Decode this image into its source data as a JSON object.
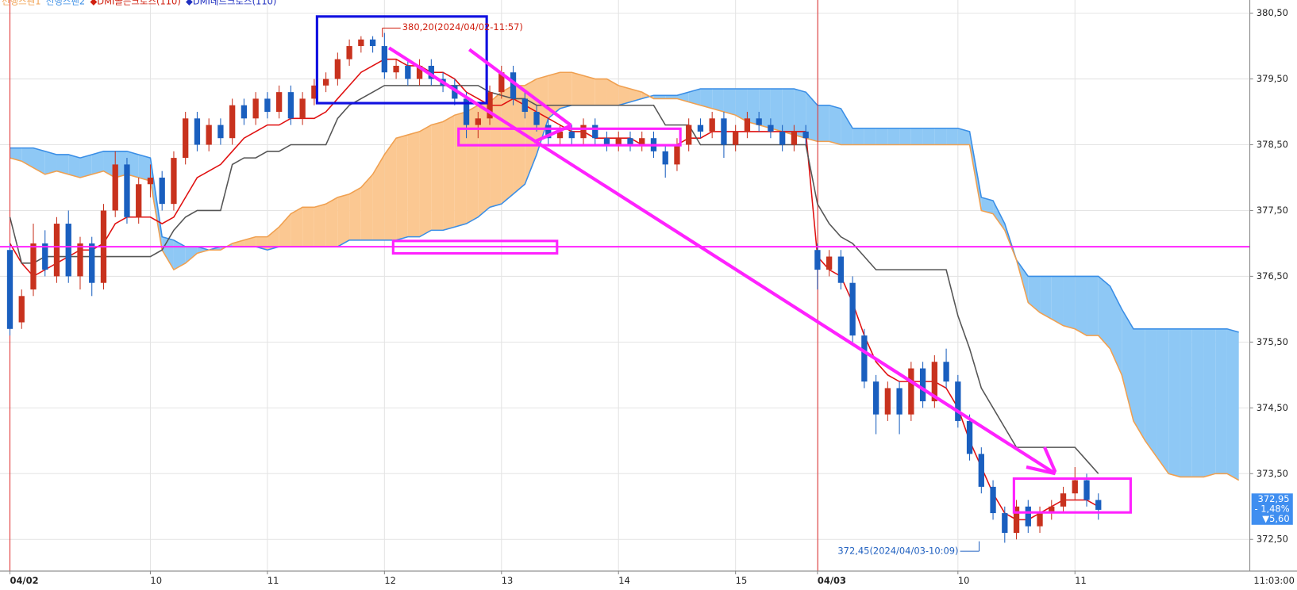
{
  "chart_data": {
    "type": "candlestick",
    "legend": [
      {
        "name": "선행스팬1",
        "color": "#f0a050"
      },
      {
        "name": "선행스팬2",
        "color": "#3a8ee6"
      },
      {
        "name": "◆DMI골든크로스(110)",
        "color": "#d02010"
      },
      {
        "name": "◆DMI데드크로스(110)",
        "color": "#2030c0"
      }
    ],
    "categories": [
      "04/02",
      null,
      null,
      null,
      null,
      null,
      null,
      null,
      null,
      null,
      null,
      null,
      "10",
      null,
      null,
      null,
      null,
      null,
      null,
      null,
      null,
      null,
      "11",
      null,
      null,
      null,
      null,
      null,
      null,
      null,
      null,
      null,
      "12",
      null,
      null,
      null,
      null,
      null,
      null,
      null,
      null,
      null,
      "13",
      null,
      null,
      null,
      null,
      null,
      null,
      null,
      null,
      null,
      "14",
      null,
      null,
      null,
      null,
      null,
      null,
      null,
      null,
      null,
      "15",
      null,
      null,
      null,
      null,
      null,
      null,
      "04/03",
      null,
      null,
      null,
      null,
      null,
      null,
      null,
      null,
      null,
      null,
      null,
      "10",
      null,
      null,
      null,
      null,
      null,
      null,
      null,
      null,
      null,
      "11",
      null,
      null,
      null,
      null,
      null,
      null,
      null,
      null,
      null,
      null,
      null,
      null,
      null,
      null
    ],
    "time_label": "11:03:00",
    "up_color": "#c8321e",
    "down_color": "#1a5fbf",
    "ohlc": [
      [
        376.9,
        377.0,
        375.6,
        375.7
      ],
      [
        375.8,
        376.3,
        375.7,
        376.2
      ],
      [
        376.3,
        377.3,
        376.2,
        377.0
      ],
      [
        377.0,
        377.2,
        376.5,
        376.6
      ],
      [
        376.5,
        377.4,
        376.4,
        377.3
      ],
      [
        377.3,
        377.5,
        376.4,
        376.5
      ],
      [
        376.5,
        377.1,
        376.3,
        377.0
      ],
      [
        377.0,
        377.1,
        376.2,
        376.4
      ],
      [
        376.4,
        377.6,
        376.3,
        377.5
      ],
      [
        377.5,
        378.4,
        377.4,
        378.2
      ],
      [
        378.2,
        378.3,
        377.3,
        377.4
      ],
      [
        377.4,
        378.0,
        377.3,
        377.9
      ],
      [
        377.9,
        378.2,
        377.7,
        378.0
      ],
      [
        378.0,
        378.1,
        377.5,
        377.6
      ],
      [
        377.6,
        378.4,
        377.5,
        378.3
      ],
      [
        378.3,
        379.0,
        378.2,
        378.9
      ],
      [
        378.9,
        379.0,
        378.4,
        378.5
      ],
      [
        378.5,
        378.9,
        378.4,
        378.8
      ],
      [
        378.8,
        378.9,
        378.5,
        378.6
      ],
      [
        378.6,
        379.2,
        378.5,
        379.1
      ],
      [
        379.1,
        379.2,
        378.8,
        378.9
      ],
      [
        378.9,
        379.3,
        378.8,
        379.2
      ],
      [
        379.2,
        379.3,
        378.9,
        379.0
      ],
      [
        379.0,
        379.4,
        378.9,
        379.3
      ],
      [
        379.3,
        379.4,
        378.8,
        378.9
      ],
      [
        378.9,
        379.3,
        378.8,
        379.2
      ],
      [
        379.2,
        379.5,
        379.1,
        379.4
      ],
      [
        379.4,
        379.6,
        379.3,
        379.5
      ],
      [
        379.5,
        379.9,
        379.4,
        379.8
      ],
      [
        379.8,
        380.1,
        379.7,
        380.0
      ],
      [
        380.0,
        380.15,
        379.9,
        380.1
      ],
      [
        380.1,
        380.15,
        379.9,
        380.0
      ],
      [
        380.0,
        380.2,
        379.5,
        379.6
      ],
      [
        379.6,
        379.8,
        379.5,
        379.7
      ],
      [
        379.7,
        379.8,
        379.4,
        379.5
      ],
      [
        379.5,
        379.8,
        379.4,
        379.7
      ],
      [
        379.7,
        379.8,
        379.4,
        379.5
      ],
      [
        379.5,
        379.6,
        379.3,
        379.4
      ],
      [
        379.4,
        379.5,
        379.1,
        379.2
      ],
      [
        379.2,
        379.3,
        378.6,
        378.8
      ],
      [
        378.8,
        379.0,
        378.6,
        378.9
      ],
      [
        378.9,
        379.4,
        378.8,
        379.3
      ],
      [
        379.3,
        379.7,
        379.2,
        379.6
      ],
      [
        379.6,
        379.7,
        379.1,
        379.2
      ],
      [
        379.2,
        379.3,
        378.9,
        379.0
      ],
      [
        379.0,
        379.1,
        378.7,
        378.8
      ],
      [
        378.8,
        378.9,
        378.5,
        378.6
      ],
      [
        378.6,
        378.8,
        378.5,
        378.7
      ],
      [
        378.7,
        378.8,
        378.5,
        378.6
      ],
      [
        378.6,
        378.9,
        378.5,
        378.8
      ],
      [
        378.8,
        378.9,
        378.5,
        378.6
      ],
      [
        378.6,
        378.7,
        378.4,
        378.5
      ],
      [
        378.5,
        378.7,
        378.4,
        378.6
      ],
      [
        378.6,
        378.7,
        378.4,
        378.5
      ],
      [
        378.5,
        378.7,
        378.4,
        378.6
      ],
      [
        378.6,
        378.7,
        378.3,
        378.4
      ],
      [
        378.4,
        378.5,
        378.0,
        378.2
      ],
      [
        378.2,
        378.6,
        378.1,
        378.5
      ],
      [
        378.5,
        378.9,
        378.4,
        378.8
      ],
      [
        378.8,
        378.9,
        378.6,
        378.7
      ],
      [
        378.7,
        379.0,
        378.6,
        378.9
      ],
      [
        378.9,
        379.0,
        378.3,
        378.5
      ],
      [
        378.5,
        378.8,
        378.4,
        378.7
      ],
      [
        378.7,
        379.0,
        378.6,
        378.9
      ],
      [
        378.9,
        379.0,
        378.7,
        378.8
      ],
      [
        378.8,
        378.9,
        378.6,
        378.7
      ],
      [
        378.7,
        378.8,
        378.4,
        378.5
      ],
      [
        378.5,
        378.8,
        378.4,
        378.7
      ],
      [
        378.7,
        378.8,
        378.5,
        378.6
      ],
      [
        376.9,
        377.0,
        376.3,
        376.6
      ],
      [
        376.6,
        376.9,
        376.5,
        376.8
      ],
      [
        376.8,
        376.9,
        376.3,
        376.4
      ],
      [
        376.4,
        376.5,
        375.5,
        375.6
      ],
      [
        375.6,
        375.7,
        374.8,
        374.9
      ],
      [
        374.9,
        375.0,
        374.1,
        374.4
      ],
      [
        374.4,
        374.9,
        374.3,
        374.8
      ],
      [
        374.8,
        374.9,
        374.1,
        374.4
      ],
      [
        374.4,
        375.2,
        374.3,
        375.1
      ],
      [
        375.1,
        375.2,
        374.5,
        374.6
      ],
      [
        374.6,
        375.3,
        374.5,
        375.2
      ],
      [
        375.2,
        375.4,
        374.8,
        374.9
      ],
      [
        374.9,
        375.0,
        374.2,
        374.3
      ],
      [
        374.3,
        374.4,
        373.7,
        373.8
      ],
      [
        373.8,
        373.9,
        373.2,
        373.3
      ],
      [
        373.3,
        373.4,
        372.8,
        372.9
      ],
      [
        372.9,
        373.0,
        372.45,
        372.6
      ],
      [
        372.6,
        373.1,
        372.5,
        373.0
      ],
      [
        373.0,
        373.1,
        372.6,
        372.7
      ],
      [
        372.7,
        373.0,
        372.6,
        372.9
      ],
      [
        372.9,
        373.1,
        372.8,
        373.0
      ],
      [
        373.0,
        373.3,
        372.9,
        373.2
      ],
      [
        373.2,
        373.6,
        373.1,
        373.4
      ],
      [
        373.4,
        373.5,
        373.0,
        373.1
      ],
      [
        373.1,
        373.2,
        372.8,
        372.95
      ],
      null,
      null,
      null,
      null,
      null,
      null,
      null,
      null,
      null,
      null,
      null,
      null
    ],
    "series": [
      {
        "color": "#e01010",
        "values": [
          377.0,
          376.7,
          376.5,
          376.6,
          376.7,
          376.8,
          376.9,
          376.9,
          377.0,
          377.3,
          377.4,
          377.4,
          377.4,
          377.3,
          377.4,
          377.7,
          378.0,
          378.1,
          378.2,
          378.4,
          378.6,
          378.7,
          378.8,
          378.8,
          378.9,
          378.9,
          378.9,
          379.0,
          379.2,
          379.4,
          379.6,
          379.7,
          379.8,
          379.8,
          379.7,
          379.7,
          379.6,
          379.6,
          379.5,
          379.3,
          379.2,
          379.1,
          379.1,
          379.2,
          379.1,
          379.0,
          378.9,
          378.8,
          378.7,
          378.7,
          378.6,
          378.6,
          378.6,
          378.6,
          378.5,
          378.5,
          378.5,
          378.5,
          378.6,
          378.6,
          378.7,
          378.7,
          378.7,
          378.7,
          378.7,
          378.7,
          378.7,
          378.7,
          378.7,
          376.8,
          376.6,
          376.5,
          376.1,
          375.6,
          375.2,
          375.0,
          374.9,
          374.9,
          374.9,
          374.9,
          374.8,
          374.5,
          374.0,
          373.6,
          373.2,
          372.9,
          372.8,
          372.8,
          372.9,
          373.0,
          373.1,
          373.1,
          373.1,
          373.0,
          null,
          null,
          null,
          null,
          null,
          null,
          null,
          null,
          null,
          null,
          null,
          null
        ]
      },
      {
        "color": "#555555",
        "values": [
          377.4,
          376.7,
          376.7,
          376.8,
          376.8,
          376.8,
          376.8,
          376.8,
          376.8,
          376.8,
          376.8,
          376.8,
          376.8,
          376.9,
          377.2,
          377.4,
          377.5,
          377.5,
          377.5,
          378.2,
          378.3,
          378.3,
          378.4,
          378.4,
          378.5,
          378.5,
          378.5,
          378.5,
          378.9,
          379.1,
          379.2,
          379.3,
          379.4,
          379.4,
          379.4,
          379.4,
          379.4,
          379.4,
          379.4,
          379.4,
          379.4,
          379.3,
          379.25,
          379.2,
          379.2,
          379.1,
          379.1,
          379.1,
          379.1,
          379.1,
          379.1,
          379.1,
          379.1,
          379.1,
          379.1,
          379.1,
          378.8,
          378.8,
          378.8,
          378.5,
          378.5,
          378.5,
          378.5,
          378.5,
          378.5,
          378.5,
          378.5,
          378.5,
          378.5,
          377.6,
          377.3,
          377.1,
          377.0,
          376.8,
          376.6,
          376.6,
          376.6,
          376.6,
          376.6,
          376.6,
          376.6,
          375.9,
          375.4,
          374.8,
          374.5,
          374.2,
          373.9,
          373.9,
          373.9,
          373.9,
          373.9,
          373.9,
          373.7,
          373.5,
          null,
          null,
          null,
          null,
          null,
          null,
          null,
          null,
          null,
          null,
          null,
          null
        ]
      }
    ],
    "cloud": {
      "color_up": "#8ec8f5",
      "color_down": "#fbc892",
      "span1": [
        378.45,
        378.45,
        378.45,
        378.4,
        378.35,
        378.35,
        378.3,
        378.35,
        378.4,
        378.4,
        378.4,
        378.35,
        378.3,
        377.1,
        377.05,
        376.95,
        376.95,
        376.9,
        376.95,
        376.95,
        376.95,
        376.95,
        376.9,
        376.95,
        376.95,
        376.95,
        376.95,
        376.95,
        376.95,
        377.05,
        377.05,
        377.05,
        377.05,
        377.05,
        377.1,
        377.1,
        377.2,
        377.2,
        377.25,
        377.3,
        377.4,
        377.55,
        377.6,
        377.75,
        377.9,
        378.35,
        378.9,
        379.05,
        379.1,
        379.1,
        379.1,
        379.1,
        379.1,
        379.15,
        379.2,
        379.25,
        379.25,
        379.25,
        379.3,
        379.35,
        379.35,
        379.35,
        379.35,
        379.35,
        379.35,
        379.35,
        379.35,
        379.35,
        379.3,
        379.1,
        379.1,
        379.05,
        378.75,
        378.75,
        378.75,
        378.75,
        378.75,
        378.75,
        378.75,
        378.75,
        378.75,
        378.75,
        378.7,
        377.7,
        377.65,
        377.3,
        376.75,
        376.5,
        376.5,
        376.5,
        376.5,
        376.5,
        376.5,
        376.5,
        376.35,
        376.0,
        375.7,
        375.7,
        375.7,
        375.7,
        375.7,
        375.7,
        375.7,
        375.7,
        375.7,
        375.65
      ],
      "span2": [
        378.3,
        378.25,
        378.15,
        378.05,
        378.1,
        378.05,
        378.0,
        378.05,
        378.1,
        378.0,
        378.05,
        378.0,
        377.95,
        376.9,
        376.6,
        376.7,
        376.85,
        376.9,
        376.9,
        377.0,
        377.05,
        377.1,
        377.1,
        377.25,
        377.45,
        377.55,
        377.55,
        377.6,
        377.7,
        377.75,
        377.85,
        378.05,
        378.35,
        378.6,
        378.65,
        378.7,
        378.8,
        378.85,
        378.95,
        379.0,
        379.1,
        379.15,
        379.3,
        379.4,
        379.4,
        379.5,
        379.55,
        379.6,
        379.6,
        379.55,
        379.5,
        379.5,
        379.4,
        379.35,
        379.3,
        379.2,
        379.2,
        379.2,
        379.15,
        379.1,
        379.05,
        379.0,
        378.95,
        378.85,
        378.8,
        378.75,
        378.7,
        378.65,
        378.6,
        378.55,
        378.55,
        378.5,
        378.5,
        378.5,
        378.5,
        378.5,
        378.5,
        378.5,
        378.5,
        378.5,
        378.5,
        378.5,
        378.5,
        377.5,
        377.45,
        377.2,
        376.75,
        376.1,
        375.95,
        375.85,
        375.75,
        375.7,
        375.6,
        375.6,
        375.4,
        375.0,
        374.3,
        374.0,
        373.75,
        373.5,
        373.45,
        373.45,
        373.45,
        373.5,
        373.5,
        373.4
      ]
    },
    "ylim": [
      372.02,
      380.7
    ],
    "yticks": [
      {
        "value": 372.5,
        "label": "372,50"
      },
      {
        "value": 373.5,
        "label": "373,50"
      },
      {
        "value": 374.5,
        "label": "374,50"
      },
      {
        "value": 375.5,
        "label": "375,50"
      },
      {
        "value": 376.5,
        "label": "376,50"
      },
      {
        "value": 377.5,
        "label": "377,50"
      },
      {
        "value": 378.5,
        "label": "378,50"
      },
      {
        "value": 379.5,
        "label": "379,50"
      },
      {
        "value": 380.5,
        "label": "380,50"
      }
    ],
    "grid": true,
    "annotations": [
      {
        "text": "380,20(2024/04/02-11:57)",
        "color": "#d02010"
      },
      {
        "text": "372,45(2024/04/03-10:09)",
        "color": "#2060c0"
      }
    ],
    "price_tag": {
      "lines": [
        "372,95",
        "- 1,48%",
        "▼5,60"
      ],
      "color": "#3f8ef0"
    }
  }
}
